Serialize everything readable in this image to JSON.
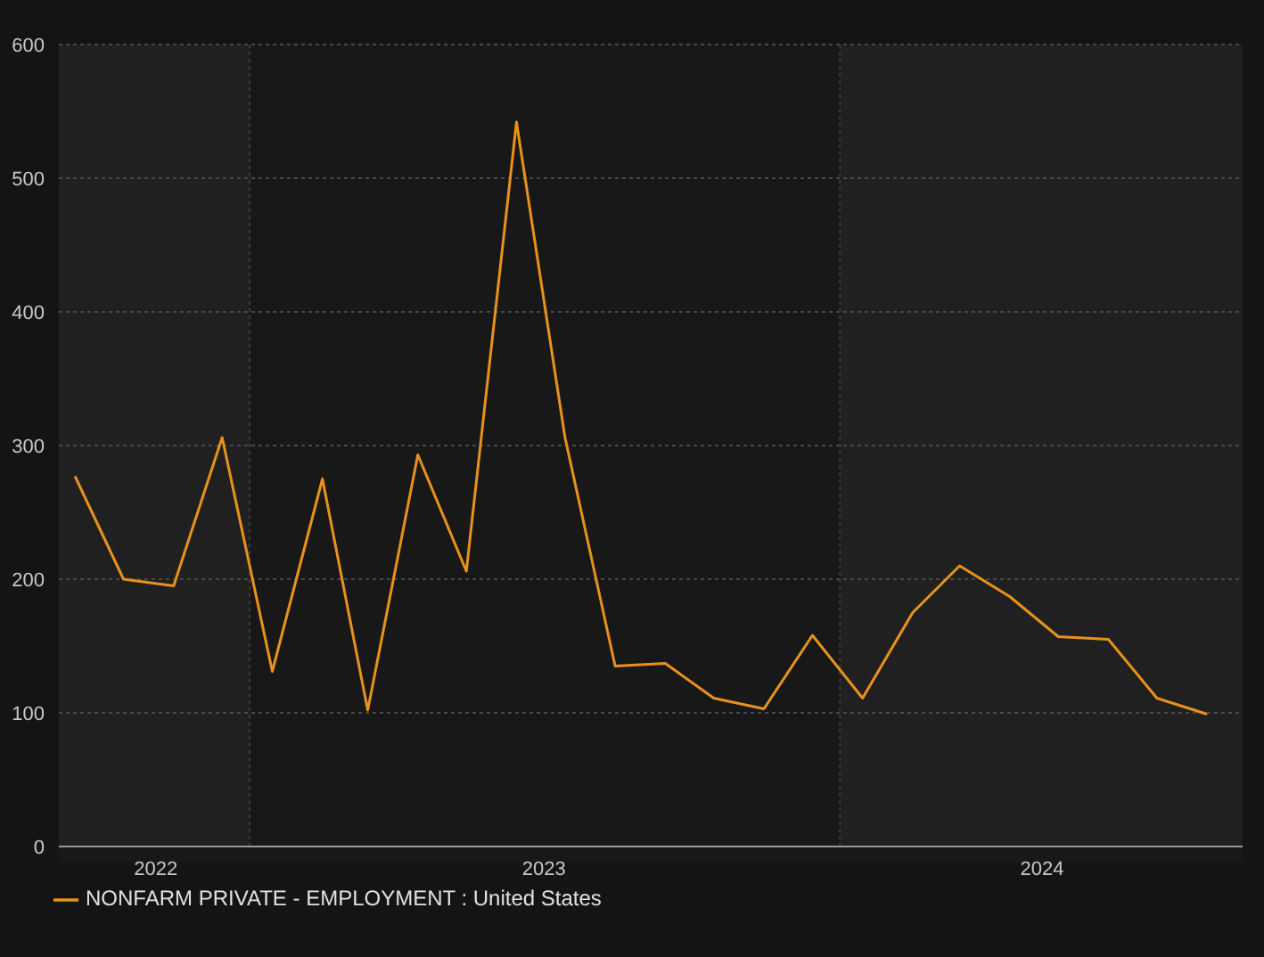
{
  "chart_data": {
    "type": "line",
    "x": [
      "2022-09-15",
      "2022-10-15",
      "2022-11-15",
      "2022-12-15",
      "2023-01-15",
      "2023-02-15",
      "2023-03-15",
      "2023-04-15",
      "2023-05-15",
      "2023-06-15",
      "2023-07-15",
      "2023-08-15",
      "2023-09-15",
      "2023-10-15",
      "2023-11-15",
      "2023-12-15",
      "2024-01-15",
      "2024-02-15",
      "2024-03-15",
      "2024-04-15",
      "2024-05-15",
      "2024-06-15",
      "2024-07-15",
      "2024-08-15"
    ],
    "series": [
      {
        "name": "NONFARM PRIVATE - EMPLOYMENT : United States",
        "color": "#e8921c",
        "values": [
          277,
          200,
          195,
          306,
          131,
          275,
          102,
          293,
          206,
          542,
          306,
          135,
          137,
          111,
          103,
          158,
          111,
          175,
          210,
          187,
          157,
          155,
          111,
          99
        ]
      }
    ],
    "xlim": [
      "2022-09-05",
      "2024-09-06"
    ],
    "xticks": [
      {
        "value": "2022-11-04",
        "label": "2022"
      },
      {
        "value": "2023-07-02",
        "label": "2023"
      },
      {
        "value": "2024-05-05",
        "label": "2024"
      }
    ],
    "ylim": [
      0,
      600
    ],
    "yticks": [
      0,
      100,
      200,
      300,
      400,
      500,
      600
    ],
    "ref_lines": [
      {
        "axis": "x",
        "value": "2023-01-01",
        "color": "#3c3c3c",
        "line_style": "dotted"
      },
      {
        "axis": "x",
        "value": "2024-01-01",
        "color": "#3c3c3c",
        "line_style": "dotted"
      }
    ],
    "bands": [
      {
        "axis": "x",
        "from": "2022-09-05",
        "to": "2023-01-01",
        "color": "#202020"
      },
      {
        "axis": "x",
        "from": "2024-01-01",
        "to": "2024-09-06",
        "color": "#202020"
      }
    ],
    "grid": "y",
    "legend": "bottom left",
    "marker": "none",
    "line_style": "solid"
  }
}
